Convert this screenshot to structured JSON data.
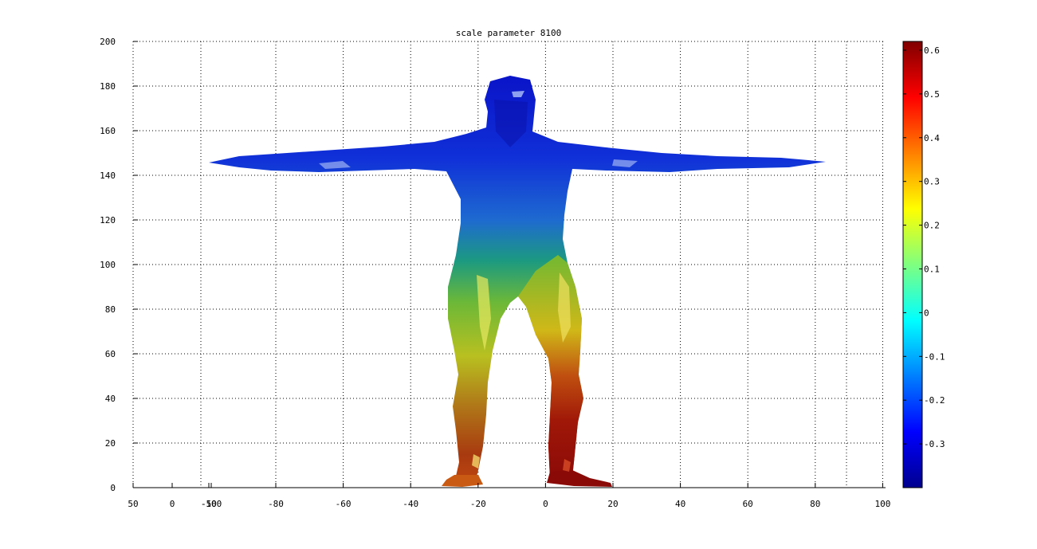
{
  "chart_data": {
    "type": "surface",
    "title": "scale parameter  8100",
    "xlabel": "",
    "ylabel": "",
    "grid": true,
    "ylim": [
      0,
      200
    ],
    "y_ticks": [
      "0",
      "20",
      "40",
      "60",
      "80",
      "100",
      "120",
      "140",
      "160",
      "180",
      "200"
    ],
    "x_ticks": [
      "50",
      "0",
      "-50",
      "-100",
      "-80",
      "-60",
      "-40",
      "-20",
      "0",
      "20",
      "40",
      "60",
      "80",
      "100"
    ],
    "colorbar": {
      "colormap": "jet",
      "clim": [
        -0.4,
        0.62
      ],
      "ticks": [
        "-0.3",
        "-0.2",
        "-0.1",
        "0",
        "0.1",
        "0.2",
        "0.3",
        "0.4",
        "0.5",
        "0.6"
      ],
      "tick_values": [
        -0.3,
        -0.2,
        -0.1,
        0,
        0.1,
        0.2,
        0.3,
        0.4,
        0.5,
        0.6
      ]
    },
    "colors": {
      "low": "#00008f",
      "mid": "#00ffff",
      "high": "#800000"
    }
  }
}
